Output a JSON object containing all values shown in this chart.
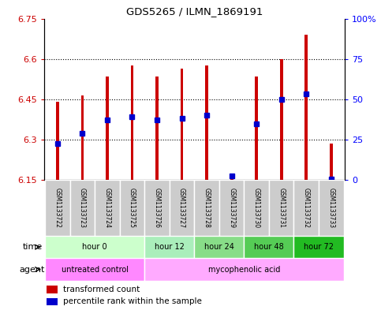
{
  "title": "GDS5265 / ILMN_1869191",
  "samples": [
    "GSM1133722",
    "GSM1133723",
    "GSM1133724",
    "GSM1133725",
    "GSM1133726",
    "GSM1133727",
    "GSM1133728",
    "GSM1133729",
    "GSM1133730",
    "GSM1133731",
    "GSM1133732",
    "GSM1133733"
  ],
  "bar_bottom": 6.15,
  "bar_top": [
    6.44,
    6.465,
    6.535,
    6.575,
    6.535,
    6.565,
    6.575,
    6.175,
    6.535,
    6.6,
    6.69,
    6.285
  ],
  "blue_dot_y": [
    6.285,
    6.325,
    6.375,
    6.385,
    6.375,
    6.38,
    6.39,
    6.165,
    6.36,
    6.45,
    6.47,
    6.155
  ],
  "ylim": [
    6.15,
    6.75
  ],
  "y_left_ticks": [
    6.15,
    6.3,
    6.45,
    6.6,
    6.75
  ],
  "y_right_ticks": [
    0,
    25,
    50,
    75,
    100
  ],
  "ytick_labels_left": [
    "6.15",
    "6.3",
    "6.45",
    "6.6",
    "6.75"
  ],
  "ytick_labels_right": [
    "0",
    "25",
    "50",
    "75",
    "100%"
  ],
  "bar_color": "#cc0000",
  "blue_color": "#0000cc",
  "bar_width": 0.12,
  "time_groups": [
    {
      "label": "hour 0",
      "start": 0,
      "end": 3,
      "color": "#ccffcc"
    },
    {
      "label": "hour 12",
      "start": 4,
      "end": 5,
      "color": "#aaeebb"
    },
    {
      "label": "hour 24",
      "start": 6,
      "end": 7,
      "color": "#88dd88"
    },
    {
      "label": "hour 48",
      "start": 8,
      "end": 9,
      "color": "#55cc55"
    },
    {
      "label": "hour 72",
      "start": 10,
      "end": 11,
      "color": "#22bb22"
    }
  ],
  "agent_groups": [
    {
      "label": "untreated control",
      "start": 0,
      "end": 3,
      "color": "#ff88ff"
    },
    {
      "label": "mycophenolic acid",
      "start": 4,
      "end": 11,
      "color": "#ffaaff"
    }
  ],
  "legend_items": [
    {
      "label": "transformed count",
      "color": "#cc0000"
    },
    {
      "label": "percentile rank within the sample",
      "color": "#0000cc"
    }
  ],
  "sample_bg_color": "#cccccc",
  "plot_bg_color": "#ffffff",
  "left_label_color": "#cc0000",
  "right_label_color": "#0000ff"
}
